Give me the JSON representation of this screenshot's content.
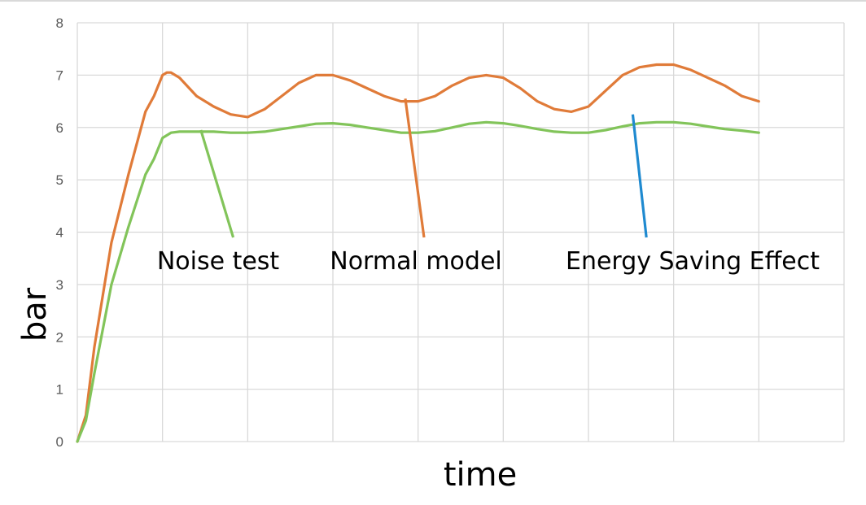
{
  "chart_data": {
    "type": "line",
    "title": "",
    "xlabel": "time",
    "ylabel": "bar",
    "ylim": [
      0,
      8
    ],
    "yticks": [
      "0",
      "1",
      "2",
      "3",
      "4",
      "5",
      "6",
      "7",
      "8"
    ],
    "xlim": [
      0,
      9
    ],
    "grid": true,
    "legend": "none",
    "series": [
      {
        "color": "#E07B39",
        "x": [
          0,
          0.1,
          0.2,
          0.4,
          0.6,
          0.8,
          0.9,
          1.0,
          1.05,
          1.1,
          1.2,
          1.4,
          1.6,
          1.8,
          2.0,
          2.2,
          2.4,
          2.6,
          2.8,
          3.0,
          3.1,
          3.2,
          3.4,
          3.6,
          3.8,
          4.0,
          4.2,
          4.4,
          4.6,
          4.8,
          5.0,
          5.2,
          5.4,
          5.6,
          5.8,
          6.0,
          6.2,
          6.4,
          6.6,
          6.8,
          7.0,
          7.1,
          7.2,
          7.4,
          7.6,
          7.8,
          8.0
        ],
        "y": [
          0,
          0.5,
          1.8,
          3.8,
          5.1,
          6.3,
          6.6,
          7.0,
          7.05,
          7.05,
          6.95,
          6.6,
          6.4,
          6.25,
          6.2,
          6.35,
          6.6,
          6.85,
          7.0,
          7.0,
          6.95,
          6.9,
          6.75,
          6.6,
          6.5,
          6.5,
          6.6,
          6.8,
          6.95,
          7.0,
          6.95,
          6.75,
          6.5,
          6.35,
          6.3,
          6.4,
          6.7,
          7.0,
          7.15,
          7.2,
          7.2,
          7.15,
          7.1,
          6.95,
          6.8,
          6.6,
          6.5
        ]
      },
      {
        "color": "#82C45A",
        "x": [
          0,
          0.1,
          0.2,
          0.4,
          0.6,
          0.8,
          0.9,
          1.0,
          1.1,
          1.2,
          1.4,
          1.6,
          1.8,
          2.0,
          2.2,
          2.4,
          2.6,
          2.8,
          3.0,
          3.2,
          3.4,
          3.6,
          3.8,
          4.0,
          4.2,
          4.4,
          4.6,
          4.8,
          5.0,
          5.2,
          5.4,
          5.6,
          5.8,
          6.0,
          6.2,
          6.4,
          6.6,
          6.8,
          7.0,
          7.2,
          7.4,
          7.6,
          7.8,
          8.0
        ],
        "y": [
          0,
          0.4,
          1.3,
          3.0,
          4.1,
          5.1,
          5.4,
          5.8,
          5.9,
          5.92,
          5.92,
          5.92,
          5.9,
          5.9,
          5.92,
          5.97,
          6.02,
          6.07,
          6.08,
          6.05,
          6.0,
          5.95,
          5.9,
          5.9,
          5.93,
          6.0,
          6.07,
          6.1,
          6.08,
          6.03,
          5.97,
          5.92,
          5.9,
          5.9,
          5.95,
          6.02,
          6.08,
          6.1,
          6.1,
          6.07,
          6.02,
          5.97,
          5.94,
          5.9
        ]
      }
    ],
    "annotations": [
      {
        "text": "Noise test",
        "color": "#82C45A",
        "from": [
          1.45,
          5.95
        ],
        "to": [
          1.83,
          3.9
        ]
      },
      {
        "text": "Normal model",
        "color": "#E07B39",
        "from": [
          3.85,
          6.55
        ],
        "to": [
          4.07,
          3.9
        ]
      },
      {
        "text": "Energy Saving Effect",
        "color": "#1F8AD0",
        "from": [
          6.52,
          6.25
        ],
        "to": [
          6.68,
          3.9
        ]
      }
    ]
  }
}
